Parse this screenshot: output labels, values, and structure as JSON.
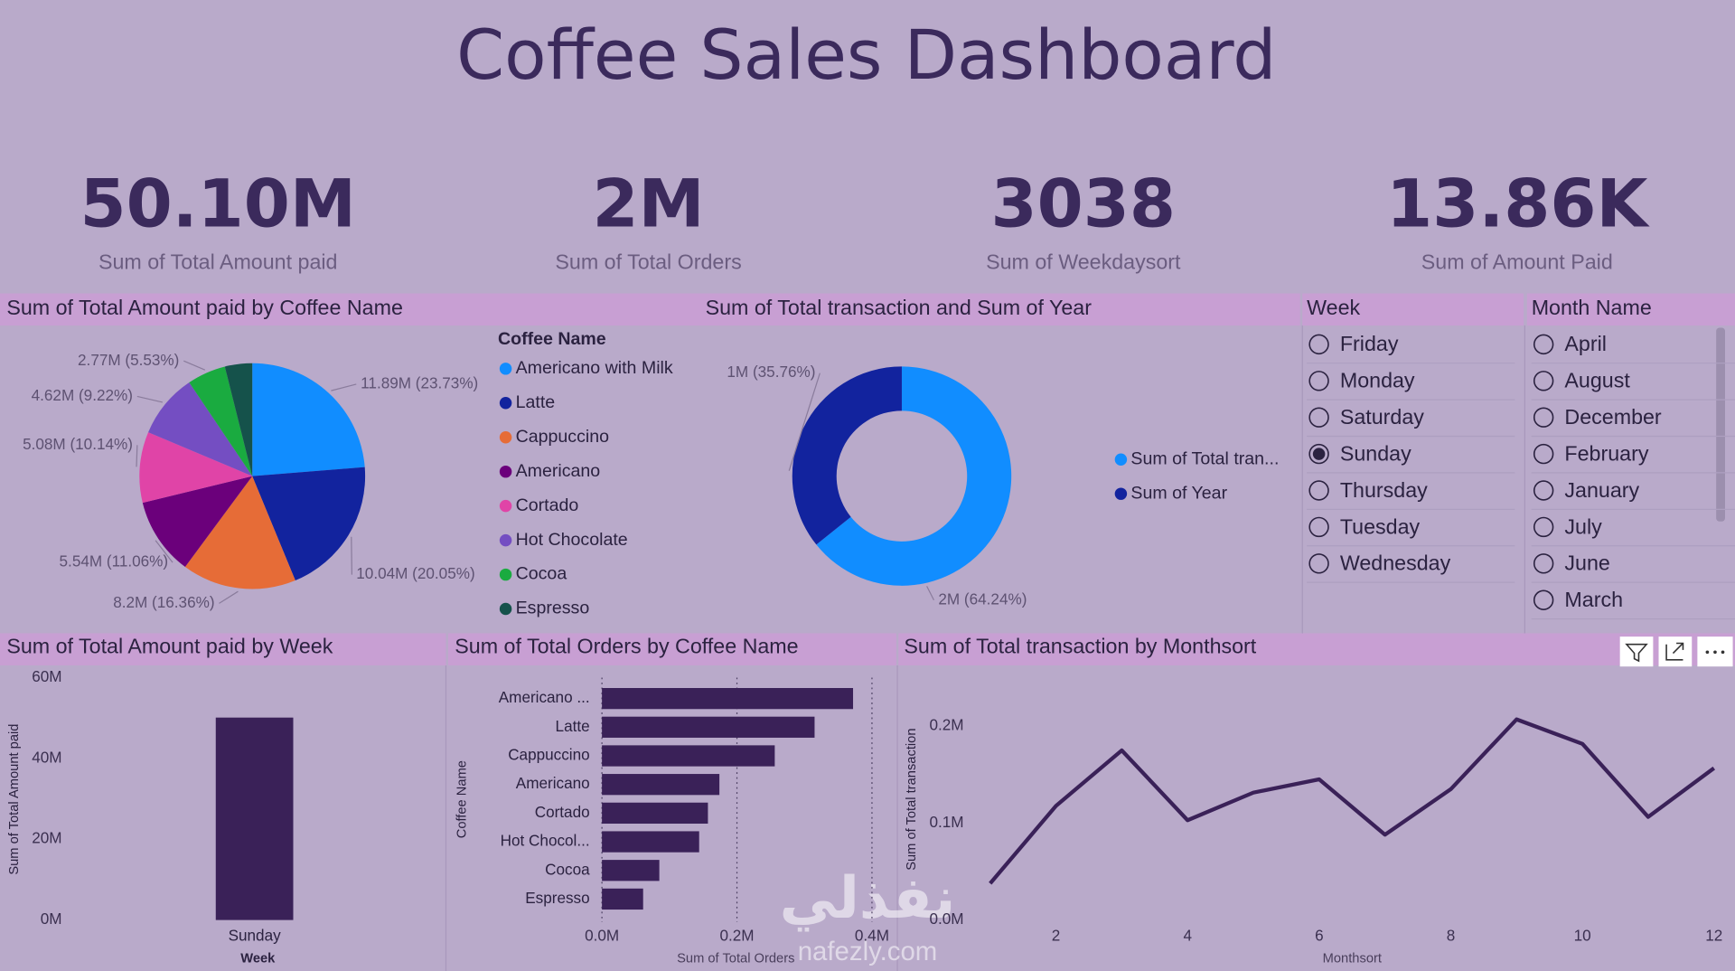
{
  "title": "Coffee Sales Dashboard",
  "kpis": [
    {
      "value": "50.10M",
      "label": "Sum of Total Amount paid"
    },
    {
      "value": "2M",
      "label": "Sum of Total Orders"
    },
    {
      "value": "3038",
      "label": "Sum of Weekdaysort"
    },
    {
      "value": "13.86K",
      "label": "Sum of Amount Paid"
    }
  ],
  "slicers": [
    {
      "title": "Week",
      "items": [
        "Friday",
        "Monday",
        "Saturday",
        "Sunday",
        "Thursday",
        "Tuesday",
        "Wednesday"
      ],
      "selected": "Sunday"
    },
    {
      "title": "Month Name",
      "items": [
        "April",
        "August",
        "December",
        "February",
        "January",
        "July",
        "June",
        "March"
      ]
    }
  ],
  "watermark": [
    "نفذلي",
    "nafezly.com"
  ],
  "chart_data": [
    {
      "type": "pie",
      "title": "Sum of Total Amount paid by Coffee Name",
      "legend_title": "Coffee Name",
      "categories": [
        "Americano with Milk",
        "Latte",
        "Cappuccino",
        "Americano",
        "Cortado",
        "Hot Chocolate",
        "Cocoa",
        "Espresso"
      ],
      "values": [
        11890000,
        10040000,
        8200000,
        5540000,
        5080000,
        4620000,
        2770000,
        1960000
      ],
      "value_labels": [
        "11.89M (23.73%)",
        "10.04M (20.05%)",
        "8.2M (16.36%)",
        "5.54M (11.06%)",
        "5.08M (10.14%)",
        "4.62M (9.22%)",
        "2.77M (5.53%)",
        null
      ],
      "colors": [
        "#118DFF",
        "#12239E",
        "#E66C37",
        "#6B007B",
        "#E044A7",
        "#744EC2",
        "#1AAB40",
        "#15524B"
      ]
    },
    {
      "type": "donut",
      "title": "Sum of Total transaction and Sum of Year",
      "series": [
        {
          "name": "Sum of Total tran...",
          "color": "#118DFF",
          "values": [
            1980000
          ],
          "value_labels": [
            "2M (64.24%)"
          ]
        },
        {
          "name": "Sum of Year",
          "color": "#12239E",
          "values": [
            1102000
          ],
          "value_labels": [
            "1M (35.76%)"
          ]
        }
      ]
    },
    {
      "type": "bar",
      "title": "Sum of Total Amount paid by Week",
      "categories": [
        "Sunday"
      ],
      "values": [
        50100000
      ],
      "color": "#3A2158",
      "ylim": [
        0,
        60000000
      ],
      "yticks": [
        {
          "value": 0,
          "label": "0M"
        },
        {
          "value": 20000000,
          "label": "20M"
        },
        {
          "value": 40000000,
          "label": "40M"
        },
        {
          "value": 60000000,
          "label": "60M"
        }
      ],
      "xlabel": "Week",
      "ylabel": "Sum of Total Amount paid"
    },
    {
      "type": "hbar",
      "title": "Sum of Total Orders by Coffee Name",
      "categories": [
        "Americano ...",
        "Latte",
        "Cappuccino",
        "Americano",
        "Cortado",
        "Hot Chocol...",
        "Cocoa",
        "Espresso"
      ],
      "values": [
        372000,
        315000,
        256000,
        174000,
        157000,
        144000,
        85000,
        61000
      ],
      "color": "#3A2158",
      "xlim": [
        0,
        436000
      ],
      "xticks": [
        {
          "value": 0,
          "label": "0.0M"
        },
        {
          "value": 200000,
          "label": "0.2M"
        },
        {
          "value": 400000,
          "label": "0.4M"
        }
      ],
      "grid": true,
      "xlabel": "Sum of Total Orders",
      "ylabel": "Coffee Name"
    },
    {
      "type": "line",
      "title": "Sum of Total transaction by Monthsort",
      "x": [
        1,
        2,
        3,
        4,
        5,
        6,
        7,
        8,
        9,
        10,
        11,
        12
      ],
      "values": [
        37700,
        117700,
        174900,
        102900,
        131400,
        145100,
        88000,
        134900,
        206900,
        181700,
        106300,
        156600
      ],
      "color": "#3A2158",
      "xlim": [
        0.75,
        12
      ],
      "xticks": [
        2,
        4,
        6,
        8,
        10,
        12
      ],
      "ylim": [
        0,
        250000
      ],
      "yticks": [
        {
          "value": 0,
          "label": "0.0M"
        },
        {
          "value": 100000,
          "label": "0.1M"
        },
        {
          "value": 200000,
          "label": "0.2M"
        }
      ],
      "xlabel": "Monthsort",
      "ylabel": "Sum of Total transaction"
    }
  ]
}
